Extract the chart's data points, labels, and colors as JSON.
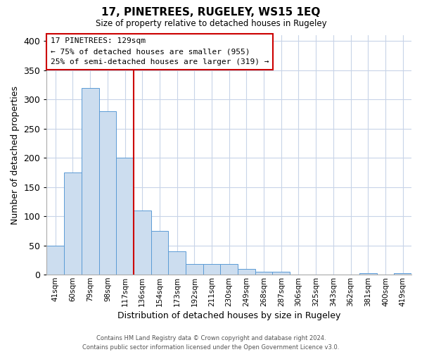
{
  "title": "17, PINETREES, RUGELEY, WS15 1EQ",
  "subtitle": "Size of property relative to detached houses in Rugeley",
  "xlabel": "Distribution of detached houses by size in Rugeley",
  "ylabel": "Number of detached properties",
  "bin_labels": [
    "41sqm",
    "60sqm",
    "79sqm",
    "98sqm",
    "117sqm",
    "136sqm",
    "154sqm",
    "173sqm",
    "192sqm",
    "211sqm",
    "230sqm",
    "249sqm",
    "268sqm",
    "287sqm",
    "306sqm",
    "325sqm",
    "343sqm",
    "362sqm",
    "381sqm",
    "400sqm",
    "419sqm"
  ],
  "bar_heights": [
    50,
    175,
    320,
    280,
    200,
    110,
    75,
    40,
    18,
    18,
    18,
    10,
    5,
    5,
    0,
    0,
    0,
    0,
    3,
    0,
    3
  ],
  "bar_color": "#ccddef",
  "bar_edge_color": "#5b9bd5",
  "vline_color": "#cc0000",
  "vline_pos": 4.5,
  "annotation_box_text": "17 PINETREES: 129sqm\n← 75% of detached houses are smaller (955)\n25% of semi-detached houses are larger (319) →",
  "ylim": [
    0,
    410
  ],
  "yticks": [
    0,
    50,
    100,
    150,
    200,
    250,
    300,
    350,
    400
  ],
  "footer_line1": "Contains HM Land Registry data © Crown copyright and database right 2024.",
  "footer_line2": "Contains public sector information licensed under the Open Government Licence v3.0.",
  "background_color": "#ffffff",
  "grid_color": "#c8d4e8"
}
